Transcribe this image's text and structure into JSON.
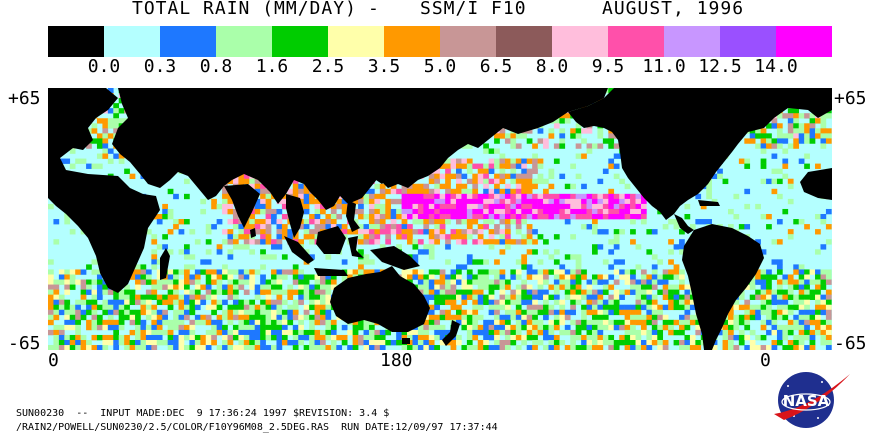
{
  "title": {
    "main": "TOTAL RAIN (MM/DAY)",
    "separator": "-",
    "instrument": "SSM/I F10",
    "date": "AUGUST, 1996"
  },
  "legend": {
    "colors": [
      "#000000",
      "#b4ffff",
      "#1e78ff",
      "#aaffaa",
      "#00cc00",
      "#ffffaa",
      "#ff9900",
      "#c89696",
      "#8c5a5a",
      "#ffbedc",
      "#ff50aa",
      "#c896ff",
      "#9a50ff",
      "#ff00ff"
    ],
    "labels": [
      "0.0",
      "0.3",
      "0.8",
      "1.6",
      "2.5",
      "3.5",
      "5.0",
      "6.5",
      "8.0",
      "9.5",
      "11.0",
      "12.5",
      "14.0"
    ]
  },
  "map": {
    "lat_top": "+65",
    "lat_bottom": "-65",
    "lon_labels": [
      "0",
      "180",
      "0"
    ],
    "land_color": "#000000",
    "ocean_base_color": "#b4ffff"
  },
  "footer": {
    "line1": "SUN00230  --  INPUT MADE:DEC  9 17:36:24 1997 $REVISION: 3.4 $",
    "line2": "/RAIN2/POWELL/SUN0230/2.5/COLOR/F10Y96M08_2.5DEG.RAS  RUN DATE:12/09/97 17:37:44"
  },
  "logo": {
    "text": "NASA"
  }
}
